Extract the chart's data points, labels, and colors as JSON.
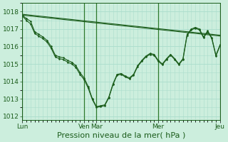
{
  "background_color": "#cceedd",
  "grid_minor_color": "#aaddcc",
  "grid_major_color": "#aaddcc",
  "line_color": "#1a5c1a",
  "ylim": [
    1011.8,
    1018.5
  ],
  "yticks": [
    1012,
    1013,
    1014,
    1015,
    1016,
    1017,
    1018
  ],
  "xlabel": "Pression niveau de la mer( hPa )",
  "xlabel_fontsize": 8,
  "tick_fontsize": 6.5,
  "day_labels": [
    "Lun",
    "Ven",
    "Mar",
    "Mer",
    "Jeu"
  ],
  "day_positions": [
    0.0,
    0.3125,
    0.375,
    0.6875,
    1.0
  ],
  "total_points": 48,
  "trend1_x": [
    0,
    2,
    4,
    6,
    8,
    12,
    16,
    20,
    24,
    28,
    32,
    36,
    40,
    44,
    48
  ],
  "trend1_y": [
    1017.8,
    1017.75,
    1017.7,
    1017.65,
    1017.6,
    1017.5,
    1017.4,
    1017.3,
    1017.2,
    1017.1,
    1017.0,
    1016.9,
    1016.8,
    1016.7,
    1016.6
  ],
  "trend2_x": [
    0,
    2,
    4,
    6,
    8,
    12,
    16,
    20,
    24,
    28,
    32,
    36,
    40,
    44,
    48
  ],
  "trend2_y": [
    1017.85,
    1017.8,
    1017.75,
    1017.7,
    1017.65,
    1017.55,
    1017.45,
    1017.35,
    1017.25,
    1017.15,
    1017.05,
    1016.95,
    1016.85,
    1016.75,
    1016.65
  ],
  "main_x": [
    0,
    1,
    2,
    3,
    4,
    5,
    6,
    7,
    8,
    9,
    10,
    11,
    12,
    13,
    14,
    15,
    16,
    17,
    18,
    19,
    20,
    21,
    22,
    23,
    24,
    25,
    26,
    27,
    28,
    29,
    30,
    31,
    32,
    33,
    34,
    35,
    36,
    37,
    38,
    39,
    40,
    41,
    42,
    43,
    44,
    45,
    46,
    47,
    48
  ],
  "main_y": [
    1017.8,
    1017.6,
    1017.45,
    1016.85,
    1016.7,
    1016.55,
    1016.35,
    1016.0,
    1015.5,
    1015.4,
    1015.35,
    1015.2,
    1015.1,
    1014.9,
    1014.5,
    1014.2,
    1013.7,
    1013.0,
    1012.55,
    1012.6,
    1012.65,
    1013.1,
    1013.85,
    1014.4,
    1014.45,
    1014.3,
    1014.2,
    1014.4,
    1014.9,
    1015.2,
    1015.45,
    1015.6,
    1015.55,
    1015.2,
    1015.0,
    1015.3,
    1015.55,
    1015.3,
    1015.0,
    1015.3,
    1016.7,
    1017.0,
    1017.1,
    1017.0,
    1016.55,
    1016.9,
    1016.5,
    1015.5,
    1016.1
  ],
  "sec_x": [
    0,
    1,
    2,
    3,
    4,
    5,
    6,
    7,
    8,
    9,
    10,
    11,
    12,
    13,
    14,
    15,
    16,
    17,
    18,
    19,
    20,
    21,
    22,
    23,
    24,
    25,
    26,
    27,
    28,
    29,
    30,
    31,
    32,
    33,
    34,
    35,
    36,
    37,
    38,
    39,
    40,
    41,
    42,
    43,
    44,
    45,
    46,
    47,
    48
  ],
  "sec_y": [
    1017.75,
    1017.5,
    1017.3,
    1016.75,
    1016.6,
    1016.45,
    1016.25,
    1015.9,
    1015.4,
    1015.3,
    1015.25,
    1015.1,
    1015.0,
    1014.8,
    1014.4,
    1014.1,
    1013.6,
    1012.95,
    1012.5,
    1012.55,
    1012.6,
    1013.05,
    1013.8,
    1014.35,
    1014.4,
    1014.25,
    1014.15,
    1014.35,
    1014.85,
    1015.15,
    1015.4,
    1015.55,
    1015.5,
    1015.15,
    1014.95,
    1015.25,
    1015.5,
    1015.25,
    1014.95,
    1015.25,
    1016.65,
    1016.95,
    1017.05,
    1016.95,
    1016.5,
    1016.85,
    1016.45,
    1015.45,
    1016.05
  ],
  "vline_x": [
    0.0,
    0.3125,
    0.375,
    0.6875,
    1.0
  ],
  "vline_color": "#2d7a2d"
}
